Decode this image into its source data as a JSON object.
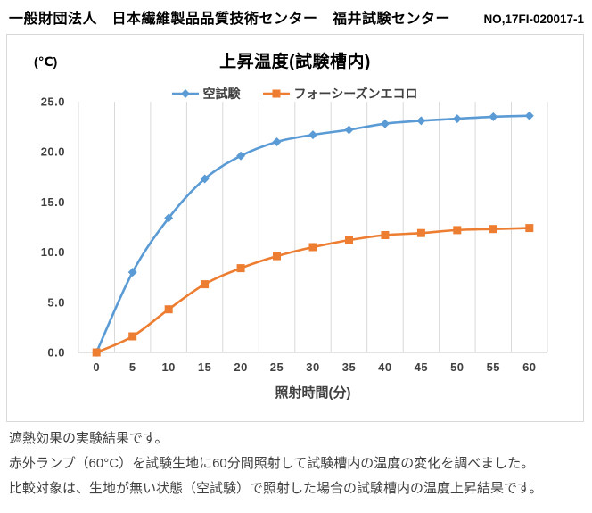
{
  "header": {
    "organization": "一般財団法人　日本繊維製品品質技術センター　福井試験センター",
    "report_number": "NO,17FI-020017-1"
  },
  "chart_data": {
    "type": "line",
    "title": "上昇温度(試験槽内)",
    "y_unit_label": "(℃)",
    "xlabel": "照射時間(分)",
    "ylabel": "",
    "x": [
      0,
      5,
      10,
      15,
      20,
      25,
      30,
      35,
      40,
      45,
      50,
      55,
      60
    ],
    "series": [
      {
        "name": "空試験",
        "color": "#5B9BD5",
        "marker": "diamond",
        "values": [
          0.0,
          8.0,
          13.4,
          17.3,
          19.6,
          21.0,
          21.7,
          22.2,
          22.8,
          23.1,
          23.3,
          23.5,
          23.6
        ]
      },
      {
        "name": "フォーシーズンエコロ",
        "color": "#ED7D31",
        "marker": "square",
        "values": [
          0.0,
          1.6,
          4.3,
          6.8,
          8.4,
          9.6,
          10.5,
          11.2,
          11.7,
          11.9,
          12.2,
          12.3,
          12.4
        ]
      }
    ],
    "ylim": [
      0,
      25
    ],
    "ytick_step": 5,
    "yticks": [
      "0.0",
      "5.0",
      "10.0",
      "15.0",
      "20.0",
      "25.0"
    ],
    "grid": "vertical-only",
    "legend_position": "top-center",
    "gridline_color": "#D9D9D9",
    "axis_line_color": "#C6C6C6"
  },
  "description": {
    "lines": [
      "遮熱効果の実験結果です。",
      "赤外ランプ（60°C）を試験生地に60分間照射して試験槽内の温度の変化を調べました。",
      "比較対象は、生地が無い状態（空試験）で照射した場合の試験槽内の温度上昇結果です。"
    ]
  }
}
